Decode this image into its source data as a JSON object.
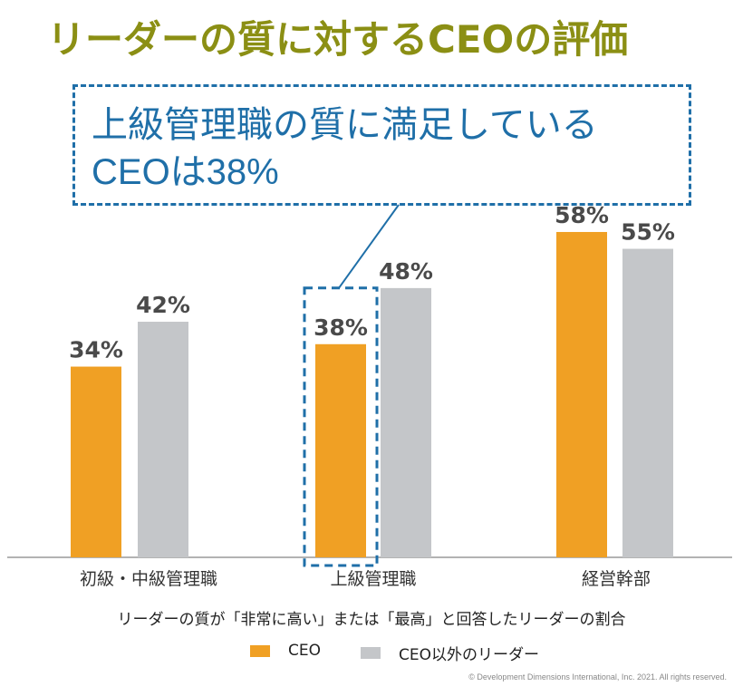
{
  "title": "リーダーの質に対するCEOの評価",
  "callout": {
    "text": "上級管理職の質に満足している\nCEOは38%"
  },
  "chart_data": {
    "type": "bar",
    "categories": [
      "初級・中級管理職",
      "上級管理職",
      "経営幹部"
    ],
    "series": [
      {
        "name": "CEO",
        "values": [
          34,
          38,
          58
        ],
        "color": "#f0a024",
        "labels": [
          "34%",
          "38%",
          "58%"
        ]
      },
      {
        "name": "CEO以外のリーダー",
        "values": [
          42,
          48,
          55
        ],
        "color": "#c4c6c9",
        "labels": [
          "42%",
          "48%",
          "55%"
        ]
      }
    ],
    "ylim": [
      0,
      100
    ],
    "grid": false,
    "highlight": {
      "category": "上級管理職",
      "series": "CEO"
    },
    "caption": "リーダーの質が「非常に高い」または「最高」と回答したリーダーの割合",
    "legend_position": "bottom"
  },
  "footer": "© Development Dimensions International, Inc. 2021. All rights reserved."
}
